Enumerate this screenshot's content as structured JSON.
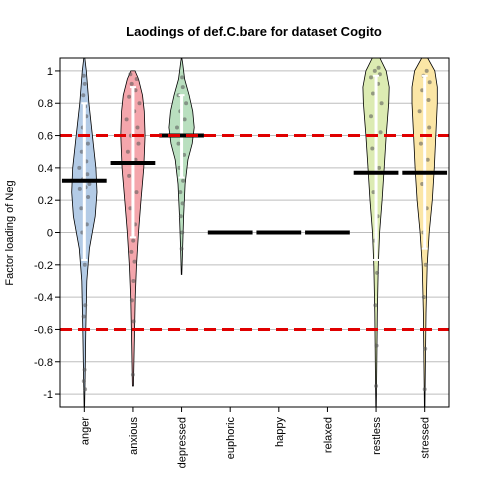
{
  "chart_data": {
    "type": "violin",
    "title": "Laodings of def.C.bare for dataset Cogito",
    "ylabel": "Factor loading of Neg",
    "xlabel": "",
    "ylim": [
      -1.08,
      1.08
    ],
    "yticks": [
      "-1",
      "-0.8",
      "-0.6",
      "-0.4",
      "-0.2",
      "0",
      "0.2",
      "0.4",
      "0.6",
      "0.8",
      "1"
    ],
    "grid": true,
    "reference_lines": [
      0.6,
      -0.6
    ],
    "reference_line_color": "#e00000",
    "categories": [
      "anger",
      "anxious",
      "depressed",
      "euphoric",
      "happy",
      "relaxed",
      "restless",
      "stressed"
    ],
    "series": [
      {
        "category": "anger",
        "fill": "#b3cbe6",
        "mean": 0.32,
        "range": [
          -1.08,
          1.08
        ],
        "iqr": [
          -0.17,
          0.8
        ],
        "density": [
          [
            -1.08,
            0.01
          ],
          [
            -0.9,
            0.03
          ],
          [
            -0.6,
            0.06
          ],
          [
            -0.3,
            0.1
          ],
          [
            -0.1,
            0.2
          ],
          [
            0.1,
            0.43
          ],
          [
            0.25,
            0.5
          ],
          [
            0.4,
            0.46
          ],
          [
            0.6,
            0.32
          ],
          [
            0.8,
            0.18
          ],
          [
            1.0,
            0.08
          ],
          [
            1.08,
            0.02
          ]
        ],
        "points": [
          [
            -0.92,
            -0.02
          ],
          [
            -0.97,
            0.03
          ],
          [
            -0.85,
            0.01
          ],
          [
            -0.52,
            -0.03
          ],
          [
            -0.45,
            0.04
          ],
          [
            -0.2,
            0.02
          ],
          [
            0.0,
            -0.08
          ],
          [
            0.05,
            0.1
          ],
          [
            0.15,
            -0.12
          ],
          [
            0.22,
            0.15
          ],
          [
            0.27,
            -0.18
          ],
          [
            0.28,
            0.05
          ],
          [
            0.3,
            0.2
          ],
          [
            0.33,
            -0.05
          ],
          [
            0.36,
            0.12
          ],
          [
            0.4,
            -0.2
          ],
          [
            0.44,
            0.08
          ],
          [
            0.5,
            -0.1
          ],
          [
            0.55,
            0.14
          ],
          [
            0.6,
            0.0
          ],
          [
            0.65,
            -0.06
          ],
          [
            0.72,
            0.08
          ],
          [
            0.78,
            0.03
          ],
          [
            0.85,
            -0.04
          ],
          [
            0.92,
            0.02
          ],
          [
            0.97,
            -0.02
          ]
        ]
      },
      {
        "category": "anxious",
        "fill": "#f4a6ac",
        "mean": 0.43,
        "range": [
          -0.95,
          1.0
        ],
        "iqr": [
          -0.03,
          0.9
        ],
        "density": [
          [
            -0.95,
            0.02
          ],
          [
            -0.7,
            0.05
          ],
          [
            -0.4,
            0.09
          ],
          [
            -0.2,
            0.14
          ],
          [
            0.0,
            0.22
          ],
          [
            0.2,
            0.32
          ],
          [
            0.4,
            0.43
          ],
          [
            0.6,
            0.48
          ],
          [
            0.75,
            0.45
          ],
          [
            0.85,
            0.38
          ],
          [
            0.95,
            0.22
          ],
          [
            1.0,
            0.08
          ]
        ],
        "points": [
          [
            -0.88,
            0.0
          ],
          [
            -0.55,
            0.03
          ],
          [
            -0.42,
            -0.04
          ],
          [
            -0.3,
            0.02
          ],
          [
            -0.18,
            0.06
          ],
          [
            -0.12,
            -0.06
          ],
          [
            -0.05,
            0.01
          ],
          [
            0.05,
            0.08
          ],
          [
            0.15,
            -0.1
          ],
          [
            0.25,
            0.14
          ],
          [
            0.35,
            -0.15
          ],
          [
            0.45,
            0.1
          ],
          [
            0.5,
            -0.2
          ],
          [
            0.55,
            0.22
          ],
          [
            0.6,
            -0.08
          ],
          [
            0.65,
            0.18
          ],
          [
            0.7,
            -0.25
          ],
          [
            0.75,
            0.05
          ],
          [
            0.8,
            0.26
          ],
          [
            0.84,
            -0.15
          ],
          [
            0.88,
            0.1
          ],
          [
            0.92,
            -0.05
          ],
          [
            0.95,
            0.15
          ],
          [
            0.98,
            -0.1
          ]
        ]
      },
      {
        "category": "depressed",
        "fill": "#b9dfbf",
        "mean": 0.6,
        "range": [
          -0.26,
          1.08
        ],
        "iqr": [
          0.34,
          0.85
        ],
        "density": [
          [
            -0.26,
            0.01
          ],
          [
            -0.1,
            0.04
          ],
          [
            0.1,
            0.08
          ],
          [
            0.3,
            0.14
          ],
          [
            0.45,
            0.25
          ],
          [
            0.55,
            0.42
          ],
          [
            0.65,
            0.5
          ],
          [
            0.75,
            0.44
          ],
          [
            0.85,
            0.3
          ],
          [
            0.95,
            0.12
          ],
          [
            1.05,
            0.04
          ],
          [
            1.08,
            0.01
          ]
        ],
        "points": [
          [
            -0.1,
            0.0
          ],
          [
            0.0,
            0.03
          ],
          [
            0.1,
            -0.03
          ],
          [
            0.18,
            0.04
          ],
          [
            0.25,
            -0.05
          ],
          [
            0.32,
            0.06
          ],
          [
            0.4,
            -0.08
          ],
          [
            0.48,
            0.1
          ],
          [
            0.55,
            -0.12
          ],
          [
            0.6,
            0.15
          ],
          [
            0.65,
            -0.18
          ],
          [
            0.7,
            0.12
          ],
          [
            0.75,
            -0.05
          ],
          [
            0.8,
            0.18
          ],
          [
            0.85,
            -0.12
          ],
          [
            0.9,
            0.05
          ],
          [
            0.96,
            0.02
          ]
        ]
      },
      {
        "category": "euphoric",
        "mean": 0.0
      },
      {
        "category": "happy",
        "mean": 0.0
      },
      {
        "category": "relaxed",
        "mean": 0.0
      },
      {
        "category": "restless",
        "fill": "#dcebb2",
        "mean": 0.37,
        "range": [
          -1.08,
          1.08
        ],
        "iqr": [
          -0.17,
          0.97
        ],
        "density": [
          [
            -1.08,
            0.01
          ],
          [
            -0.8,
            0.03
          ],
          [
            -0.5,
            0.05
          ],
          [
            -0.2,
            0.09
          ],
          [
            0.0,
            0.14
          ],
          [
            0.2,
            0.24
          ],
          [
            0.4,
            0.32
          ],
          [
            0.6,
            0.4
          ],
          [
            0.8,
            0.5
          ],
          [
            0.9,
            0.52
          ],
          [
            1.0,
            0.4
          ],
          [
            1.08,
            0.15
          ]
        ],
        "points": [
          [
            -0.95,
            0.0
          ],
          [
            -0.7,
            0.02
          ],
          [
            -0.45,
            -0.03
          ],
          [
            -0.25,
            0.04
          ],
          [
            -0.05,
            -0.05
          ],
          [
            0.1,
            0.06
          ],
          [
            0.25,
            -0.1
          ],
          [
            0.4,
            0.12
          ],
          [
            0.52,
            -0.15
          ],
          [
            0.62,
            0.18
          ],
          [
            0.72,
            -0.2
          ],
          [
            0.8,
            0.22
          ],
          [
            0.86,
            -0.12
          ],
          [
            0.92,
            0.08
          ],
          [
            0.96,
            -0.2
          ],
          [
            0.98,
            0.15
          ],
          [
            1.0,
            -0.05
          ],
          [
            1.02,
            0.1
          ]
        ]
      },
      {
        "category": "stressed",
        "fill": "#fbe6a6",
        "mean": 0.37,
        "range": [
          -1.08,
          1.08
        ],
        "iqr": [
          -0.1,
          0.97
        ],
        "density": [
          [
            -1.08,
            0.01
          ],
          [
            -0.8,
            0.03
          ],
          [
            -0.5,
            0.05
          ],
          [
            -0.2,
            0.1
          ],
          [
            0.0,
            0.18
          ],
          [
            0.2,
            0.3
          ],
          [
            0.4,
            0.38
          ],
          [
            0.6,
            0.44
          ],
          [
            0.8,
            0.5
          ],
          [
            0.9,
            0.5
          ],
          [
            1.0,
            0.4
          ],
          [
            1.08,
            0.12
          ]
        ],
        "points": [
          [
            -0.97,
            0.0
          ],
          [
            -0.72,
            0.02
          ],
          [
            -0.4,
            -0.03
          ],
          [
            -0.2,
            0.04
          ],
          [
            0.0,
            -0.05
          ],
          [
            0.15,
            0.08
          ],
          [
            0.3,
            -0.1
          ],
          [
            0.45,
            0.12
          ],
          [
            0.55,
            -0.15
          ],
          [
            0.65,
            0.18
          ],
          [
            0.75,
            -0.2
          ],
          [
            0.82,
            0.15
          ],
          [
            0.88,
            -0.1
          ],
          [
            0.93,
            0.2
          ],
          [
            0.97,
            -0.05
          ],
          [
            1.0,
            0.08
          ]
        ]
      }
    ]
  }
}
